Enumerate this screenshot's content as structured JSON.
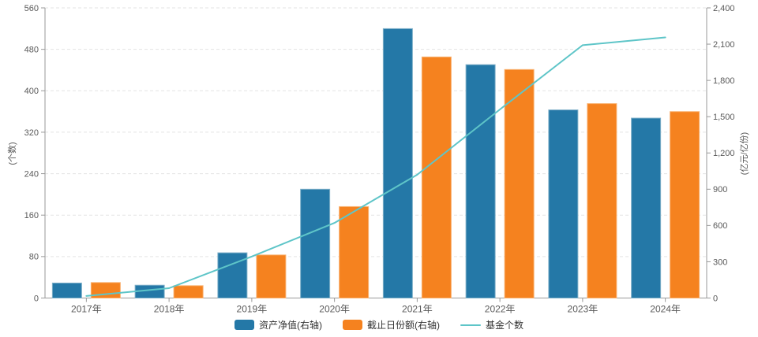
{
  "chart_data": {
    "type": "bar+line combo (dual axis)",
    "title": "",
    "categories": [
      "2017年",
      "2018年",
      "2019年",
      "2020年",
      "2021年",
      "2022年",
      "2023年",
      "2024年"
    ],
    "series": [
      {
        "key": "net-asset-value",
        "name": "资产净值(右轴)",
        "type": "bar",
        "axis": "right",
        "color": "#2478A7",
        "border": "#7FB0C9",
        "values": [
          124,
          106,
          374,
          900,
          2228,
          1930,
          1556,
          1488
        ]
      },
      {
        "key": "closing-shares",
        "name": "截止日份额(右轴)",
        "type": "bar",
        "axis": "right",
        "color": "#F5821F",
        "border": "#F9B170",
        "values": [
          128,
          102,
          356,
          756,
          1994,
          1890,
          1608,
          1542
        ]
      },
      {
        "key": "fund-count",
        "name": "基金个数",
        "type": "line",
        "axis": "left",
        "color": "#5EC5C8",
        "values": [
          4,
          19,
          80,
          145,
          238,
          364,
          488,
          503
        ]
      }
    ],
    "axes": {
      "left": {
        "title": "(个数)",
        "min": 0,
        "max": 560,
        "ticks": [
          0,
          80,
          160,
          240,
          320,
          400,
          480,
          560
        ]
      },
      "right": {
        "title": "(亿元/亿份)",
        "min": 0,
        "max": 2400,
        "ticks": [
          0,
          300,
          600,
          900,
          1200,
          1500,
          1800,
          2100,
          2400
        ],
        "tick_labels": [
          "0",
          "300",
          "600",
          "900",
          "1,200",
          "1,500",
          "1,800",
          "2,100",
          "2,400"
        ]
      }
    },
    "grid": "horizontal dashed",
    "legend_position": "bottom",
    "colors": {
      "grid": "#e3e3e3",
      "axis": "#999999",
      "text": "#595959",
      "legend_text": "#333333"
    }
  }
}
